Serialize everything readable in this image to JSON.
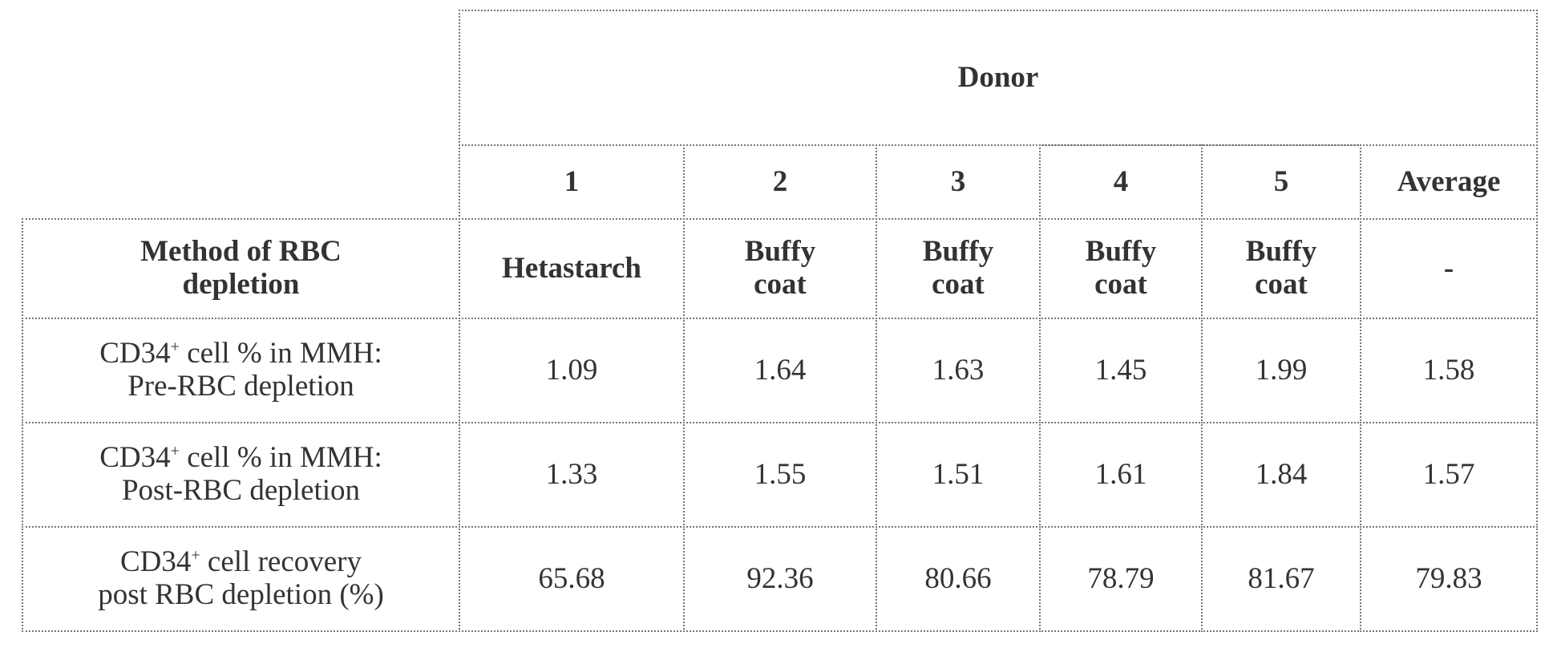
{
  "table": {
    "header": "Donor",
    "columns": [
      "1",
      "2",
      "3",
      "4",
      "5",
      "Average"
    ],
    "method_row": {
      "label": [
        "Method of RBC",
        "depletion"
      ],
      "values": [
        [
          "Hetastarch"
        ],
        [
          "Buffy",
          "coat"
        ],
        [
          "Buffy",
          "coat"
        ],
        [
          "Buffy",
          "coat"
        ],
        [
          "Buffy",
          "coat"
        ],
        [
          "-"
        ]
      ]
    },
    "rows": [
      {
        "label": {
          "pre": "CD34",
          "sup": "+",
          "post": " cell % in MMH:",
          "line2": "Pre-RBC depletion"
        },
        "values": [
          "1.09",
          "1.64",
          "1.63",
          "1.45",
          "1.99",
          "1.58"
        ]
      },
      {
        "label": {
          "pre": "CD34",
          "sup": "+",
          "post": " cell % in MMH:",
          "line2": "Post-RBC depletion"
        },
        "values": [
          "1.33",
          "1.55",
          "1.51",
          "1.61",
          "1.84",
          "1.57"
        ]
      },
      {
        "label": {
          "pre": "CD34",
          "sup": "+",
          "post": " cell recovery",
          "line2": "post RBC depletion (%)"
        },
        "values": [
          "65.68",
          "92.36",
          "80.66",
          "78.79",
          "81.67",
          "79.83"
        ]
      }
    ]
  }
}
